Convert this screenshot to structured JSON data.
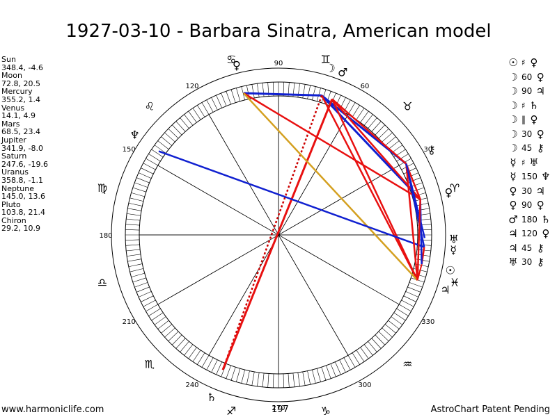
{
  "title": "1927-03-10 - Barbara Sinatra, American model",
  "planets": [
    {
      "name": "Sun",
      "coords": "348.4, -4.6",
      "glyph": "☉",
      "lon": 348.4
    },
    {
      "name": "Moon",
      "coords": "72.8, 20.5",
      "glyph": "☽",
      "lon": 72.8
    },
    {
      "name": "Mercury",
      "coords": "355.2, 1.4",
      "glyph": "☿",
      "lon": 355.2
    },
    {
      "name": "Venus",
      "coords": "14.1, 4.9",
      "glyph": "♀",
      "lon": 14.1
    },
    {
      "name": "Mars",
      "coords": "68.5, 23.4",
      "glyph": "♂",
      "lon": 68.5
    },
    {
      "name": "Jupiter",
      "coords": "341.9, -8.0",
      "glyph": "♃",
      "lon": 341.9
    },
    {
      "name": "Saturn",
      "coords": "247.6, -19.6",
      "glyph": "♄",
      "lon": 247.6
    },
    {
      "name": "Uranus",
      "coords": "358.8, -1.1",
      "glyph": "♅",
      "lon": 358.8
    },
    {
      "name": "Neptune",
      "coords": "145.0, 13.6",
      "glyph": "♆",
      "lon": 145.0
    },
    {
      "name": "Pluto",
      "coords": "103.8, 21.4",
      "glyph": "♀",
      "lon": 103.8
    },
    {
      "name": "Chiron",
      "coords": "29.2, 10.9",
      "glyph": "⚷",
      "lon": 29.2
    }
  ],
  "aspects": [
    {
      "p1": "☉",
      "aspect": "♯",
      "p2": "♀"
    },
    {
      "p1": "☽",
      "aspect": "60",
      "p2": "♀"
    },
    {
      "p1": "☽",
      "aspect": "90",
      "p2": "♃"
    },
    {
      "p1": "☽",
      "aspect": "♯",
      "p2": "♄"
    },
    {
      "p1": "☽",
      "aspect": "‖",
      "p2": "♀"
    },
    {
      "p1": "☽",
      "aspect": "30",
      "p2": "♀"
    },
    {
      "p1": "☽",
      "aspect": "45",
      "p2": "⚷"
    },
    {
      "p1": "☿",
      "aspect": "♯",
      "p2": "♅"
    },
    {
      "p1": "☿",
      "aspect": "150",
      "p2": "♆"
    },
    {
      "p1": "♀",
      "aspect": "30",
      "p2": "♃"
    },
    {
      "p1": "♀",
      "aspect": "90",
      "p2": "♀"
    },
    {
      "p1": "♂",
      "aspect": "180",
      "p2": "♄"
    },
    {
      "p1": "♃",
      "aspect": "120",
      "p2": "♀"
    },
    {
      "p1": "♃",
      "aspect": "45",
      "p2": "⚷"
    },
    {
      "p1": "♅",
      "aspect": "30",
      "p2": "⚷"
    }
  ],
  "degree_labels": [
    "90",
    "60",
    "30",
    "330",
    "300",
    "270",
    "240",
    "210",
    "180",
    "150",
    "120"
  ],
  "zodiac_signs": [
    "♈",
    "♉",
    "♊",
    "♋",
    "♌",
    "♍",
    "♎",
    "♏",
    "♐",
    "♑",
    "♒",
    "♓"
  ],
  "bottom_value": "197",
  "footer": {
    "left": "www.harmoniclife.com",
    "right": "AstroChart Patent Pending"
  },
  "colors": {
    "line_red": "#e81010",
    "line_blue": "#1020d0",
    "line_gold": "#d4a020",
    "line_dark_red": "#cc0000"
  }
}
